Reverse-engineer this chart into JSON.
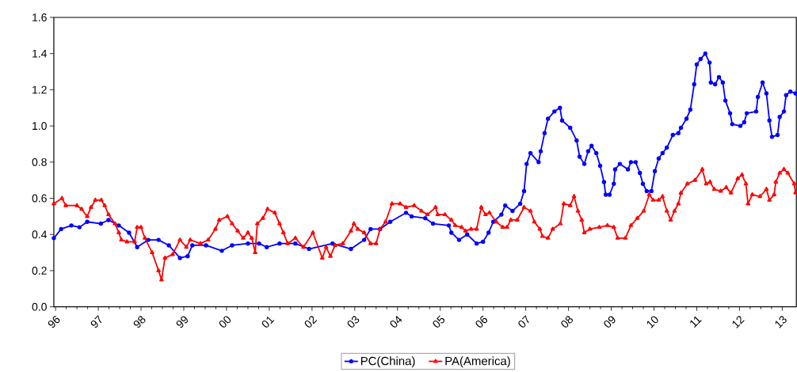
{
  "chart_data": {
    "type": "line",
    "xlim": [
      1995.96,
      2013.33
    ],
    "ylim": [
      0,
      1.6
    ],
    "xticks": [
      {
        "value": 1996,
        "label": "96"
      },
      {
        "value": 1997,
        "label": "97"
      },
      {
        "value": 1998,
        "label": "98"
      },
      {
        "value": 1999,
        "label": "99"
      },
      {
        "value": 2000,
        "label": "00"
      },
      {
        "value": 2001,
        "label": "01"
      },
      {
        "value": 2002,
        "label": "02"
      },
      {
        "value": 2003,
        "label": "03"
      },
      {
        "value": 2004,
        "label": "04"
      },
      {
        "value": 2005,
        "label": "05"
      },
      {
        "value": 2006,
        "label": "06"
      },
      {
        "value": 2007,
        "label": "07"
      },
      {
        "value": 2008,
        "label": "08"
      },
      {
        "value": 2009,
        "label": "09"
      },
      {
        "value": 2010,
        "label": "10"
      },
      {
        "value": 2011,
        "label": "11"
      },
      {
        "value": 2012,
        "label": "12"
      },
      {
        "value": 2013,
        "label": "13"
      }
    ],
    "yticks": [
      {
        "value": 0,
        "label": "0.0"
      },
      {
        "value": 0.2,
        "label": "0.2"
      },
      {
        "value": 0.4,
        "label": "0.4"
      },
      {
        "value": 0.6,
        "label": "0.6"
      },
      {
        "value": 0.8,
        "label": "0.8"
      },
      {
        "value": 1,
        "label": "1.0"
      },
      {
        "value": 1.2,
        "label": "1.2"
      },
      {
        "value": 1.4,
        "label": "1.4"
      },
      {
        "value": 1.6,
        "label": "1.6"
      }
    ],
    "grid": false,
    "legend": "bottom",
    "series": [
      {
        "name": "PC(China)",
        "color": "#0000ff",
        "marker": "circle",
        "x": [
          1995.96,
          1996.13,
          1996.37,
          1996.56,
          1996.74,
          1997.06,
          1997.24,
          1997.48,
          1997.72,
          1997.91,
          1998.17,
          1998.41,
          1998.65,
          1998.91,
          1999.09,
          1999.2,
          1999.52,
          1999.89,
          2000.13,
          2000.5,
          2000.76,
          2000.94,
          2001.24,
          2001.61,
          2001.93,
          2002.48,
          2002.91,
          2003.22,
          2003.37,
          2003.59,
          2003.83,
          2004.2,
          2004.33,
          2004.65,
          2004.83,
          2005.2,
          2005.26,
          2005.44,
          2005.63,
          2005.85,
          2006.0,
          2006.13,
          2006.24,
          2006.43,
          2006.52,
          2006.69,
          2006.87,
          2006.96,
          2007.02,
          2007.11,
          2007.3,
          2007.35,
          2007.44,
          2007.52,
          2007.67,
          2007.8,
          2007.85,
          2008.04,
          2008.19,
          2008.26,
          2008.37,
          2008.46,
          2008.54,
          2008.65,
          2008.74,
          2008.83,
          2008.87,
          2008.96,
          2009.06,
          2009.09,
          2009.2,
          2009.39,
          2009.46,
          2009.57,
          2009.67,
          2009.74,
          2009.83,
          2009.94,
          2010.02,
          2010.11,
          2010.2,
          2010.3,
          2010.44,
          2010.57,
          2010.63,
          2010.76,
          2010.85,
          2010.94,
          2011.0,
          2011.09,
          2011.2,
          2011.3,
          2011.33,
          2011.43,
          2011.52,
          2011.61,
          2011.67,
          2011.78,
          2011.83,
          2012.02,
          2012.11,
          2012.17,
          2012.39,
          2012.43,
          2012.54,
          2012.63,
          2012.7,
          2012.76,
          2012.89,
          2012.94,
          2013.04,
          2013.09,
          2013.19,
          2013.31
        ],
        "values": [
          0.38,
          0.43,
          0.45,
          0.44,
          0.47,
          0.46,
          0.48,
          0.45,
          0.41,
          0.33,
          0.37,
          0.37,
          0.34,
          0.27,
          0.28,
          0.34,
          0.34,
          0.31,
          0.34,
          0.35,
          0.35,
          0.33,
          0.35,
          0.35,
          0.32,
          0.35,
          0.32,
          0.37,
          0.43,
          0.43,
          0.47,
          0.52,
          0.5,
          0.49,
          0.46,
          0.45,
          0.41,
          0.37,
          0.4,
          0.35,
          0.36,
          0.41,
          0.47,
          0.51,
          0.56,
          0.53,
          0.57,
          0.64,
          0.79,
          0.85,
          0.8,
          0.86,
          0.96,
          1.04,
          1.08,
          1.1,
          1.03,
          0.99,
          0.92,
          0.83,
          0.79,
          0.86,
          0.89,
          0.85,
          0.78,
          0.69,
          0.62,
          0.62,
          0.68,
          0.76,
          0.79,
          0.76,
          0.8,
          0.8,
          0.74,
          0.68,
          0.64,
          0.64,
          0.75,
          0.82,
          0.85,
          0.88,
          0.95,
          0.96,
          0.99,
          1.04,
          1.09,
          1.23,
          1.34,
          1.37,
          1.4,
          1.35,
          1.24,
          1.23,
          1.27,
          1.24,
          1.14,
          1.07,
          1.01,
          1.0,
          1.02,
          1.07,
          1.08,
          1.16,
          1.24,
          1.18,
          1.03,
          0.94,
          0.95,
          1.05,
          1.08,
          1.17,
          1.19,
          1.18
        ]
      },
      {
        "name": "PA(America)",
        "color": "#ff0000",
        "marker": "triangle",
        "x": [
          1995.96,
          1996.15,
          1996.24,
          1996.5,
          1996.61,
          1996.74,
          1996.83,
          1996.93,
          1997.07,
          1997.15,
          1997.24,
          1997.39,
          1997.48,
          1997.54,
          1997.67,
          1997.85,
          1997.91,
          1998.0,
          1998.09,
          1998.26,
          1998.41,
          1998.48,
          1998.56,
          1998.74,
          1998.91,
          1999.06,
          1999.15,
          1999.39,
          1999.57,
          1999.74,
          1999.83,
          2000.02,
          2000.13,
          2000.26,
          2000.39,
          2000.5,
          2000.59,
          2000.67,
          2000.72,
          2000.85,
          2000.96,
          2001.13,
          2001.24,
          2001.33,
          2001.43,
          2001.61,
          2001.8,
          2002.02,
          2002.24,
          2002.33,
          2002.43,
          2002.54,
          2002.72,
          2002.91,
          2002.98,
          2003.07,
          2003.22,
          2003.37,
          2003.5,
          2003.59,
          2003.72,
          2003.87,
          2004.06,
          2004.2,
          2004.39,
          2004.56,
          2004.7,
          2004.89,
          2004.94,
          2005.11,
          2005.26,
          2005.35,
          2005.5,
          2005.59,
          2005.72,
          2005.85,
          2005.96,
          2006.06,
          2006.15,
          2006.31,
          2006.46,
          2006.56,
          2006.65,
          2006.8,
          2006.96,
          2007.11,
          2007.2,
          2007.33,
          2007.39,
          2007.52,
          2007.63,
          2007.81,
          2007.89,
          2008.04,
          2008.13,
          2008.22,
          2008.31,
          2008.37,
          2008.5,
          2008.72,
          2008.91,
          2009.06,
          2009.15,
          2009.33,
          2009.46,
          2009.61,
          2009.76,
          2009.89,
          2009.98,
          2010.11,
          2010.2,
          2010.3,
          2010.39,
          2010.48,
          2010.57,
          2010.63,
          2010.78,
          2010.96,
          2011.13,
          2011.22,
          2011.31,
          2011.41,
          2011.56,
          2011.69,
          2011.8,
          2011.96,
          2012.06,
          2012.15,
          2012.2,
          2012.3,
          2012.48,
          2012.63,
          2012.7,
          2012.81,
          2012.85,
          2012.94,
          2013.04,
          2013.13,
          2013.28,
          2013.31
        ],
        "values": [
          0.57,
          0.6,
          0.56,
          0.56,
          0.54,
          0.5,
          0.55,
          0.59,
          0.59,
          0.56,
          0.51,
          0.46,
          0.41,
          0.37,
          0.36,
          0.36,
          0.44,
          0.44,
          0.38,
          0.3,
          0.2,
          0.15,
          0.27,
          0.29,
          0.37,
          0.33,
          0.37,
          0.35,
          0.37,
          0.43,
          0.48,
          0.5,
          0.46,
          0.42,
          0.38,
          0.41,
          0.38,
          0.3,
          0.46,
          0.49,
          0.54,
          0.52,
          0.46,
          0.41,
          0.35,
          0.38,
          0.33,
          0.41,
          0.27,
          0.33,
          0.28,
          0.34,
          0.35,
          0.42,
          0.46,
          0.43,
          0.41,
          0.35,
          0.35,
          0.43,
          0.47,
          0.57,
          0.57,
          0.55,
          0.56,
          0.53,
          0.51,
          0.55,
          0.51,
          0.51,
          0.48,
          0.45,
          0.44,
          0.42,
          0.43,
          0.43,
          0.55,
          0.51,
          0.52,
          0.47,
          0.44,
          0.44,
          0.48,
          0.48,
          0.55,
          0.53,
          0.47,
          0.43,
          0.39,
          0.38,
          0.43,
          0.46,
          0.57,
          0.56,
          0.61,
          0.53,
          0.48,
          0.41,
          0.43,
          0.44,
          0.45,
          0.44,
          0.38,
          0.38,
          0.45,
          0.49,
          0.53,
          0.62,
          0.59,
          0.59,
          0.61,
          0.53,
          0.48,
          0.53,
          0.57,
          0.63,
          0.68,
          0.7,
          0.76,
          0.68,
          0.69,
          0.65,
          0.64,
          0.66,
          0.63,
          0.71,
          0.73,
          0.68,
          0.57,
          0.62,
          0.61,
          0.65,
          0.59,
          0.62,
          0.69,
          0.74,
          0.76,
          0.74,
          0.68,
          0.63
        ]
      }
    ]
  }
}
